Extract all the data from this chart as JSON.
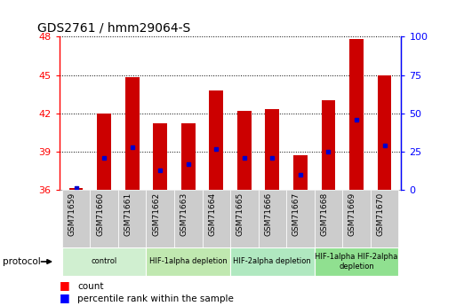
{
  "title": "GDS2761 / hmm29064-S",
  "samples": [
    "GSM71659",
    "GSM71660",
    "GSM71661",
    "GSM71662",
    "GSM71663",
    "GSM71664",
    "GSM71665",
    "GSM71666",
    "GSM71667",
    "GSM71668",
    "GSM71669",
    "GSM71670"
  ],
  "bar_tops": [
    36.1,
    42.0,
    44.8,
    41.2,
    41.2,
    43.8,
    42.2,
    42.3,
    38.7,
    43.0,
    47.8,
    45.0
  ],
  "bar_base": 36.0,
  "blue_markers": [
    36.15,
    38.5,
    39.3,
    37.5,
    38.0,
    39.2,
    38.5,
    38.5,
    37.2,
    39.0,
    41.5,
    39.5
  ],
  "ylim": [
    36,
    48
  ],
  "yticks_left": [
    36,
    39,
    42,
    45,
    48
  ],
  "yticks_right": [
    0,
    25,
    50,
    75,
    100
  ],
  "right_ylim": [
    0,
    100
  ],
  "bar_color": "#cc0000",
  "blue_color": "#0000cc",
  "protocol_groups": [
    {
      "label": "control",
      "indices": [
        0,
        1,
        2
      ],
      "color": "#d0efd0"
    },
    {
      "label": "HIF-1alpha depletion",
      "indices": [
        3,
        4,
        5
      ],
      "color": "#c0e8b0"
    },
    {
      "label": "HIF-2alpha depletion",
      "indices": [
        6,
        7,
        8
      ],
      "color": "#b0e8c0"
    },
    {
      "label": "HIF-1alpha HIF-2alpha\ndepletion",
      "indices": [
        9,
        10,
        11
      ],
      "color": "#90e090"
    }
  ],
  "legend_count_label": "count",
  "legend_percentile_label": "percentile rank within the sample",
  "bar_width": 0.5,
  "xlim": [
    -0.6,
    11.6
  ]
}
